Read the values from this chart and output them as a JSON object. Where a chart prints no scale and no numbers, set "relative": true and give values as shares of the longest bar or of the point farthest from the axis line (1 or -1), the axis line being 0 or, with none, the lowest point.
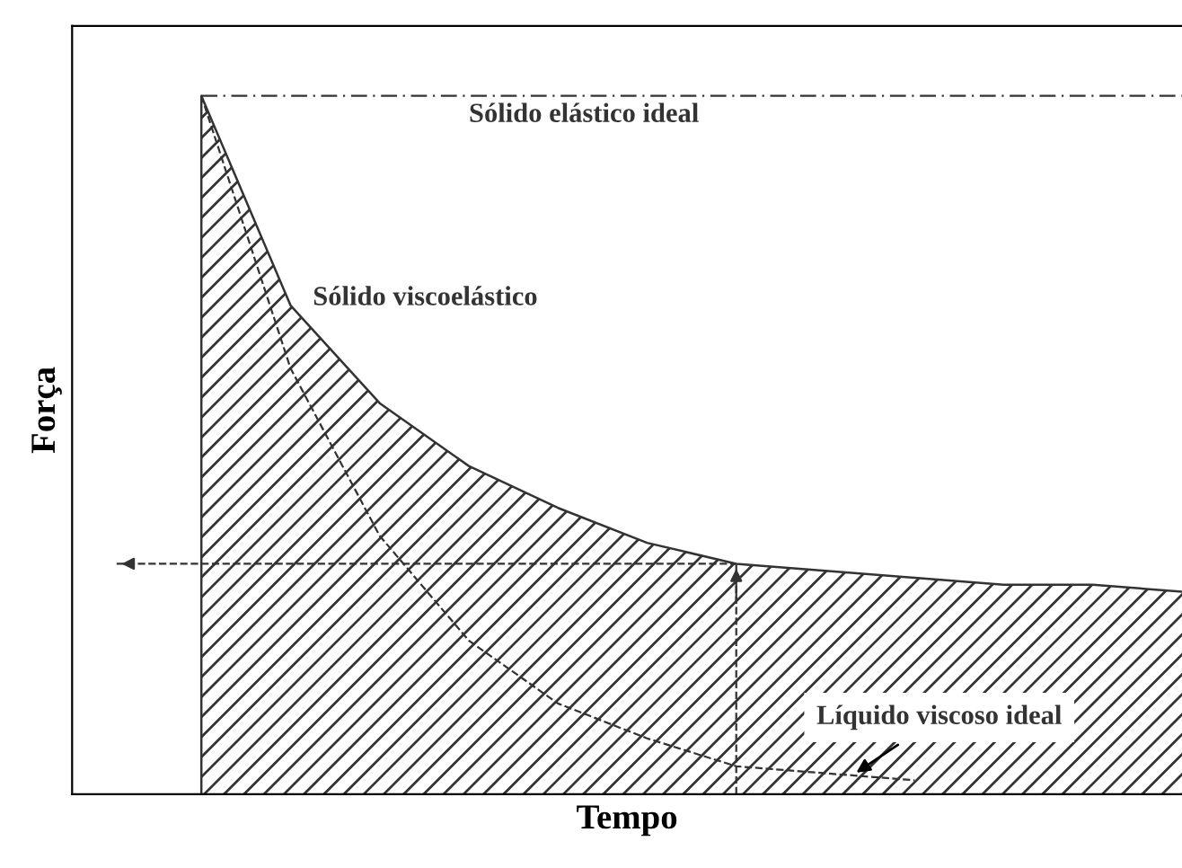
{
  "chart_data": {
    "type": "line",
    "relative": true,
    "xlabel": "Tempo",
    "ylabel": "Força",
    "categories": [
      null,
      null,
      null,
      null,
      null,
      null,
      null,
      null,
      null,
      null,
      null,
      null
    ],
    "series": [
      {
        "name": "Sólido elástico ideal",
        "color": "#333333",
        "line_style": "dotted",
        "values": [
          1,
          1,
          1,
          1,
          1,
          1,
          1,
          1,
          1,
          1,
          1,
          1
        ]
      },
      {
        "name": "Sólido viscoelástico",
        "type": "area",
        "color": "#333333",
        "line_style": "solid",
        "values": [
          1,
          0.7,
          0.56,
          0.47,
          0.41,
          0.36,
          0.33,
          0.32,
          0.31,
          0.3,
          0.3,
          0.29
        ]
      },
      {
        "name": "Líquido viscoso ideal",
        "color": "#333333",
        "line_style": "dashed",
        "values": [
          1,
          0.61,
          0.37,
          0.22,
          0.13,
          0.08,
          0.04,
          0.03,
          0.02,
          null,
          null,
          null
        ]
      }
    ],
    "ref_lines": [
      {
        "axis": "y",
        "value": 0.33,
        "line_style": "dashed",
        "color": "#333333"
      }
    ],
    "legend": false
  }
}
